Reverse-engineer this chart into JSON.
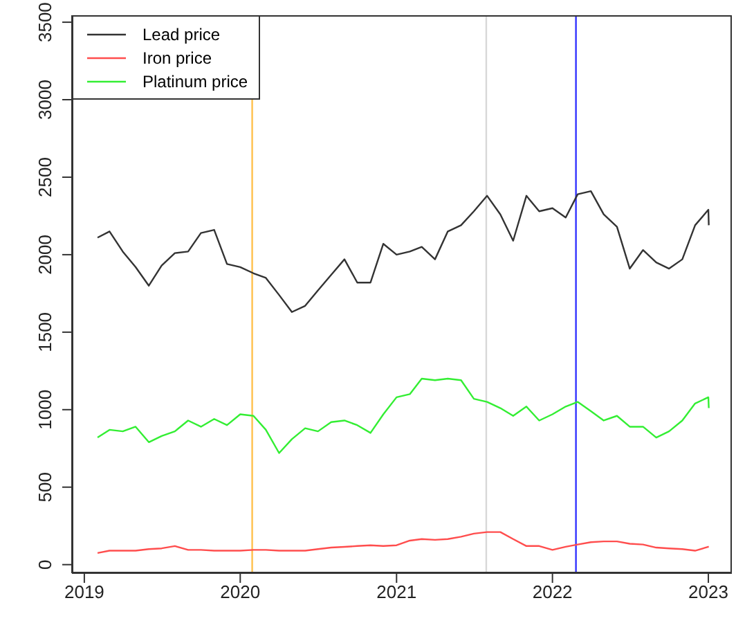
{
  "chart_data": {
    "type": "line",
    "x": [
      "2019-02",
      "2019-03",
      "2019-04",
      "2019-05",
      "2019-06",
      "2019-07",
      "2019-08",
      "2019-09",
      "2019-10",
      "2019-11",
      "2019-12",
      "2020-01",
      "2020-02",
      "2020-03",
      "2020-04",
      "2020-05",
      "2020-06",
      "2020-07",
      "2020-08",
      "2020-09",
      "2020-10",
      "2020-11",
      "2020-12",
      "2021-01",
      "2021-02",
      "2021-03",
      "2021-04",
      "2021-05",
      "2021-06",
      "2021-07",
      "2021-08",
      "2021-09",
      "2021-10",
      "2021-11",
      "2021-12",
      "2022-01",
      "2022-02",
      "2022-03",
      "2022-04",
      "2022-05",
      "2022-06",
      "2022-07",
      "2022-08",
      "2022-09",
      "2022-10",
      "2022-11",
      "2022-12",
      "2023-01",
      "2023-01-02"
    ],
    "series": [
      {
        "name": "Lead price",
        "color": "#333333",
        "values": [
          2110,
          2150,
          2020,
          1920,
          1800,
          1930,
          2010,
          2020,
          2140,
          2160,
          1940,
          1920,
          1880,
          1850,
          1740,
          1630,
          1670,
          1770,
          1870,
          1970,
          1820,
          1820,
          2070,
          2000,
          2020,
          2050,
          1970,
          2150,
          2190,
          2280,
          2380,
          2260,
          2090,
          2380,
          2280,
          2300,
          2240,
          2390,
          2410,
          2260,
          2180,
          1910,
          2030,
          1950,
          1910,
          1970,
          2190,
          2290,
          2190
        ]
      },
      {
        "name": "Iron price",
        "color": "#ff4d4d",
        "values": [
          75,
          90,
          90,
          90,
          100,
          105,
          120,
          95,
          95,
          90,
          90,
          90,
          95,
          95,
          90,
          90,
          90,
          100,
          110,
          115,
          120,
          125,
          120,
          125,
          155,
          165,
          160,
          165,
          180,
          200,
          210,
          210,
          165,
          120,
          120,
          95,
          115,
          130,
          145,
          150,
          150,
          135,
          130,
          110,
          105,
          100,
          90,
          115,
          115
        ]
      },
      {
        "name": "Platinum price",
        "color": "#33ee33",
        "values": [
          820,
          870,
          860,
          890,
          790,
          830,
          860,
          930,
          890,
          940,
          900,
          970,
          960,
          870,
          720,
          810,
          880,
          860,
          920,
          930,
          900,
          850,
          970,
          1080,
          1100,
          1200,
          1190,
          1200,
          1190,
          1070,
          1050,
          1010,
          960,
          1020,
          930,
          970,
          1020,
          1050,
          990,
          930,
          960,
          890,
          890,
          820,
          860,
          930,
          1040,
          1080,
          1010
        ]
      }
    ],
    "xlim": [
      "2018-12-03",
      "2023-02-25"
    ],
    "xticks": [
      "2019",
      "2020",
      "2021",
      "2022",
      "2023"
    ],
    "ylim": [
      -55,
      3545
    ],
    "yticks": [
      0,
      500,
      1000,
      1500,
      2000,
      2500,
      3000,
      3500
    ],
    "ref_lines": [
      {
        "axis": "x",
        "value": "2020-01-29",
        "color": "#ffc04c"
      },
      {
        "axis": "x",
        "value": "2021-07-30",
        "color": "#d8d8d8"
      },
      {
        "axis": "x",
        "value": "2022-02-25",
        "color": "#3333ff"
      }
    ],
    "legend": "top left",
    "grid": false
  }
}
